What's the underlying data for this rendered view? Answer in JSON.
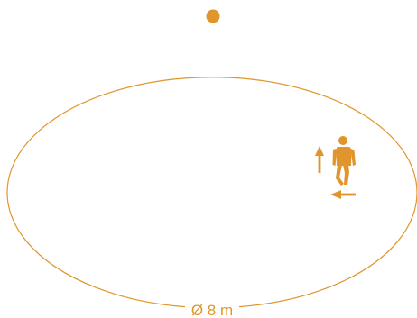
{
  "diagram": {
    "diameter_label": "Ø 8 m",
    "colors": {
      "accent": "#E0962C",
      "pole_line_top": "#3a3a3a",
      "pole_line_bottom": "#e6e6e6",
      "background": "#ffffff"
    },
    "icons": {
      "person": "walking-person-icon",
      "up_arrow": "arrow-up-icon",
      "left_arrow": "arrow-left-icon",
      "pendulum_bob": "pendulum-bob-icon"
    }
  }
}
